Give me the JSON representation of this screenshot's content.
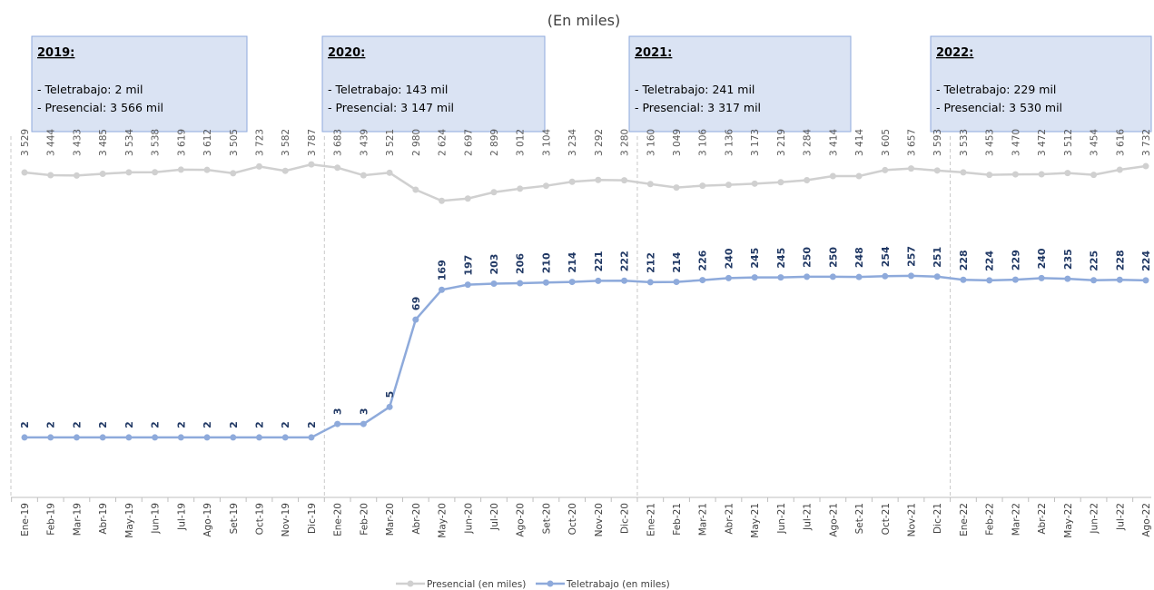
{
  "chart_data": {
    "type": "line",
    "subtitle": "(En miles)",
    "categories": [
      "Ene-19",
      "Feb-19",
      "Mar-19",
      "Abr-19",
      "May-19",
      "Jun-19",
      "Jul-19",
      "Ago-19",
      "Set-19",
      "Oct-19",
      "Nov-19",
      "Dic-19",
      "Ene-20",
      "Feb-20",
      "Mar-20",
      "Abr-20",
      "May-20",
      "Jun-20",
      "Jul-20",
      "Ago-20",
      "Set-20",
      "Oct-20",
      "Nov-20",
      "Dic-20",
      "Ene-21",
      "Feb-21",
      "Mar-21",
      "Abr-21",
      "May-21",
      "Jun-21",
      "Jul-21",
      "Ago-21",
      "Set-21",
      "Oct-21",
      "Nov-21",
      "Dic-21",
      "Ene-22",
      "Feb-22",
      "Mar-22",
      "Abr-22",
      "May-22",
      "Jun-22",
      "Jul-22",
      "Ago-22"
    ],
    "series": [
      {
        "name": "Presencial (en miles)",
        "color": "#d0d0d0",
        "axis": "y",
        "values": [
          3529,
          3444,
          3433,
          3485,
          3534,
          3538,
          3619,
          3612,
          3505,
          3723,
          3582,
          3787,
          3683,
          3439,
          3521,
          2980,
          2624,
          2697,
          2899,
          3012,
          3104,
          3234,
          3292,
          3280,
          3160,
          3049,
          3106,
          3136,
          3173,
          3219,
          3284,
          3414,
          3414,
          3605,
          3657,
          3593,
          3533,
          3453,
          3470,
          3472,
          3512,
          3454,
          3616,
          3732
        ],
        "value_labels": [
          "3 529",
          "3 444",
          "3 433",
          "3 485",
          "3 534",
          "3 538",
          "3 619",
          "3 612",
          "3 505",
          "3 723",
          "3 582",
          "3 787",
          "3 683",
          "3 439",
          "3 521",
          "2 980",
          "2 624",
          "2 697",
          "2 899",
          "3 012",
          "3 104",
          "3 234",
          "3 292",
          "3 280",
          "3 160",
          "3 049",
          "3 106",
          "3 136",
          "3 173",
          "3 219",
          "3 284",
          "3 414",
          "3 414",
          "3 605",
          "3 657",
          "3 593",
          "3 533",
          "3 453",
          "3 470",
          "3 472",
          "3 512",
          "3 454",
          "3 616",
          "3 732"
        ]
      },
      {
        "name": "Teletrabajo (en miles)",
        "color": "#8eaadb",
        "axis": "y2",
        "values": [
          2,
          2,
          2,
          2,
          2,
          2,
          2,
          2,
          2,
          2,
          2,
          2,
          3,
          3,
          5,
          69,
          169,
          197,
          203,
          206,
          210,
          214,
          221,
          222,
          212,
          214,
          226,
          240,
          245,
          245,
          250,
          250,
          248,
          254,
          257,
          251,
          228,
          224,
          229,
          240,
          235,
          225,
          228,
          224
        ]
      }
    ],
    "ylim": [
      -6850,
      4400
    ],
    "y2lim": [
      0.33,
      13000
    ],
    "y2_log": true,
    "annotations": [
      {
        "title": "2019:",
        "lines": [
          "- Teletrabajo: 2 mil",
          "- Presencial: 3 566 mil"
        ]
      },
      {
        "title": "2020:",
        "lines": [
          "- Teletrabajo: 143 mil",
          "- Presencial: 3 147 mil"
        ]
      },
      {
        "title": "2021:",
        "lines": [
          "- Teletrabajo: 241 mil",
          "- Presencial: 3 317 mil"
        ]
      },
      {
        "title": "2022:",
        "lines": [
          "- Teletrabajo: 229 mil",
          "- Presencial: 3 530 mil"
        ]
      }
    ]
  }
}
